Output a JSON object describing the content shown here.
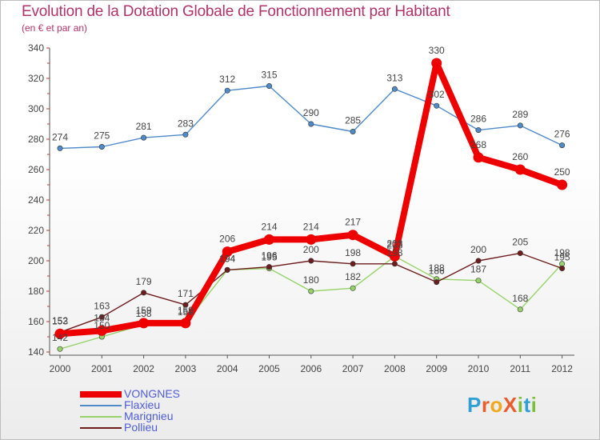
{
  "chart_data": {
    "type": "line",
    "title": "Evolution de la Dotation Globale de Fonctionnement par Habitant",
    "subtitle": "(en € et par an)",
    "xlabel": "",
    "ylabel": "",
    "categories": [
      "2000",
      "2001",
      "2002",
      "2003",
      "2004",
      "2005",
      "2006",
      "2007",
      "2008",
      "2009",
      "2010",
      "2011",
      "2012"
    ],
    "ylim": [
      140,
      340
    ],
    "yticks": [
      140,
      160,
      180,
      200,
      220,
      240,
      260,
      280,
      300,
      320,
      340
    ],
    "grid": false,
    "legend_position": "bottom-left",
    "series": [
      {
        "name": "VONGNES",
        "color": "#ee0000",
        "values": [
          152,
          154,
          159,
          159,
          206,
          214,
          214,
          217,
          203,
          330,
          268,
          260,
          250
        ],
        "labels": [
          "152",
          "154",
          "159",
          "159",
          "206",
          "214",
          "214",
          "217",
          "203",
          "330",
          "268",
          "260",
          "250"
        ]
      },
      {
        "name": "Flaxieu",
        "color": "#4f8ac9",
        "values": [
          274,
          275,
          281,
          283,
          312,
          315,
          290,
          285,
          313,
          302,
          286,
          289,
          276
        ],
        "labels": [
          "274",
          "275",
          "281",
          "283",
          "312",
          "315",
          "290",
          "285",
          "313",
          "302",
          "286",
          "289",
          "276"
        ]
      },
      {
        "name": "Marignieu",
        "color": "#97d36a",
        "values": [
          142,
          150,
          158,
          159,
          194,
          195,
          180,
          182,
          203,
          188,
          187,
          168,
          198
        ],
        "labels": [
          "142",
          "150",
          "158",
          "159",
          "194",
          "195",
          "180",
          "182",
          "203",
          "188",
          "187",
          "168",
          "198"
        ]
      },
      {
        "name": "Pollieu",
        "color": "#6e1d1d",
        "values": [
          153,
          163,
          179,
          171,
          194,
          196,
          200,
          198,
          198,
          186,
          200,
          205,
          195
        ],
        "labels": [
          "153",
          "163",
          "179",
          "171",
          "194",
          "196",
          "200",
          "198",
          "198",
          "186",
          "200",
          "205",
          "195"
        ]
      }
    ]
  },
  "logo": {
    "text": "ProXiti",
    "letters": [
      "P",
      "r",
      "o",
      "X",
      "i",
      "t",
      "i"
    ],
    "colors": [
      "#2f9fd4",
      "#e85d2b",
      "#f0a81e",
      "#e85d2b",
      "#7cc03a",
      "#2f9fd4",
      "#7cc03a"
    ]
  }
}
